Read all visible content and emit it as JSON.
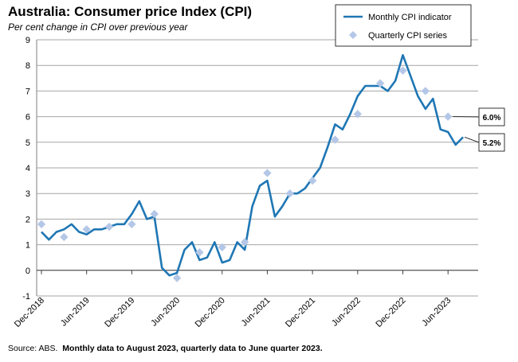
{
  "title": "Australia: Consumer price Index (CPI)",
  "subtitle": "Per cent change in CPI over previous year",
  "source": {
    "prefix": "Source: ABS.",
    "note": "Monthly data to August 2023, quarterly data to June quarter 2023."
  },
  "colors": {
    "monthly": "#1F77B4",
    "quarterly": "#B4C7E7",
    "grid": "#A6A6A6",
    "axis": "#7F7F7F"
  },
  "chart_data": {
    "type": "line",
    "title": "Australia: Consumer price Index (CPI)",
    "ylabel": "Per cent change in CPI over previous year",
    "ylim": [
      -1,
      9
    ],
    "yticks": [
      -1,
      0,
      1,
      2,
      3,
      4,
      5,
      6,
      7,
      8,
      9
    ],
    "xlabels": [
      {
        "label": "Dec-2018",
        "index": 0
      },
      {
        "label": "Jun-2019",
        "index": 6
      },
      {
        "label": "Dec-2019",
        "index": 12
      },
      {
        "label": "Jun-2020",
        "index": 18
      },
      {
        "label": "Dec-2020",
        "index": 24
      },
      {
        "label": "Jun-2021",
        "index": 30
      },
      {
        "label": "Dec-2021",
        "index": 36
      },
      {
        "label": "Jun-2022",
        "index": 42
      },
      {
        "label": "Dec-2022",
        "index": 48
      },
      {
        "label": "Jun-2023",
        "index": 54
      }
    ],
    "series": [
      {
        "name": "Monthly CPI indicator",
        "style": "line",
        "start": "Dec-2018",
        "values": [
          1.5,
          1.2,
          1.5,
          1.6,
          1.8,
          1.5,
          1.4,
          1.6,
          1.6,
          1.7,
          1.8,
          1.8,
          2.2,
          2.7,
          2.0,
          2.1,
          0.1,
          -0.2,
          -0.1,
          0.8,
          1.1,
          0.4,
          0.5,
          1.1,
          0.3,
          0.4,
          1.1,
          0.8,
          2.5,
          3.3,
          3.5,
          2.1,
          2.5,
          3.0,
          3.0,
          3.2,
          3.6,
          4.0,
          4.8,
          5.7,
          5.5,
          6.1,
          6.8,
          7.2,
          7.2,
          7.2,
          7.0,
          7.4,
          8.4,
          7.6,
          6.8,
          6.3,
          6.7,
          5.5,
          5.4,
          4.9,
          5.2
        ]
      },
      {
        "name": "Quarterly CPI series",
        "style": "markers",
        "points": [
          {
            "index": 0,
            "value": 1.8
          },
          {
            "index": 3,
            "value": 1.3
          },
          {
            "index": 6,
            "value": 1.6
          },
          {
            "index": 9,
            "value": 1.7
          },
          {
            "index": 12,
            "value": 1.8
          },
          {
            "index": 15,
            "value": 2.2
          },
          {
            "index": 18,
            "value": -0.3
          },
          {
            "index": 21,
            "value": 0.7
          },
          {
            "index": 24,
            "value": 0.9
          },
          {
            "index": 27,
            "value": 1.1
          },
          {
            "index": 30,
            "value": 3.8
          },
          {
            "index": 33,
            "value": 3.0
          },
          {
            "index": 36,
            "value": 3.5
          },
          {
            "index": 39,
            "value": 5.1
          },
          {
            "index": 42,
            "value": 6.1
          },
          {
            "index": 45,
            "value": 7.3
          },
          {
            "index": 48,
            "value": 7.8
          },
          {
            "index": 51,
            "value": 7.0
          },
          {
            "index": 54,
            "value": 6.0
          }
        ]
      }
    ],
    "annotations": [
      {
        "text": "6.0%",
        "series": "Quarterly CPI series",
        "value": 6.0
      },
      {
        "text": "5.2%",
        "series": "Monthly CPI indicator",
        "value": 5.2
      }
    ],
    "legend": {
      "position": "top-right",
      "entries": [
        "Monthly CPI indicator",
        "Quarterly CPI series"
      ]
    },
    "grid": true
  }
}
